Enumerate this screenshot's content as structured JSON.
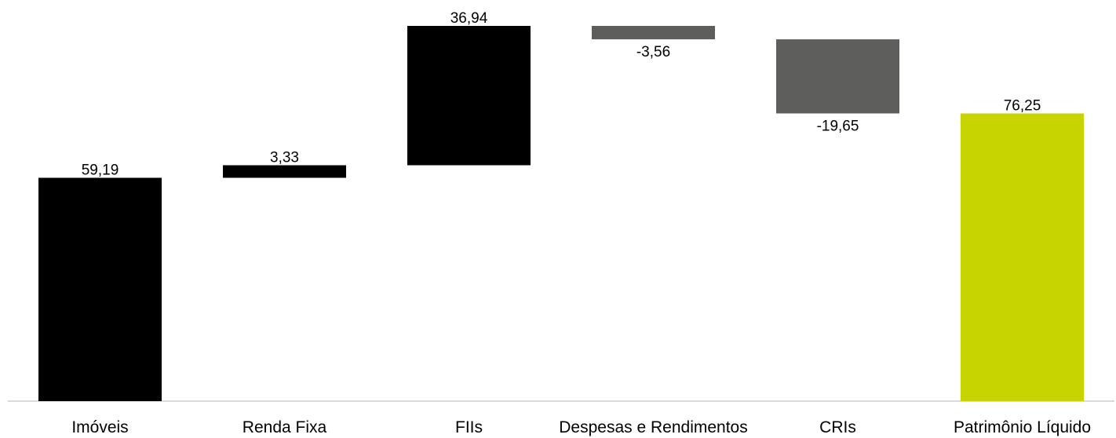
{
  "chart_data": {
    "type": "waterfall",
    "categories": [
      "Imóveis",
      "Renda Fixa",
      "FIIs",
      "Despesas e Rendimentos",
      "CRIs",
      "Patrimônio Líquido"
    ],
    "values": [
      59.19,
      3.33,
      36.94,
      -3.56,
      -19.65,
      76.25
    ],
    "value_labels": [
      "59,19",
      "3,33",
      "36,94",
      "-3,56",
      "-19,65",
      "76,25"
    ],
    "bar_kinds": [
      "increase",
      "increase",
      "increase",
      "decrease",
      "decrease",
      "total"
    ],
    "colors": {
      "increase": "#000000",
      "decrease": "#5e5e5c",
      "total": "#c8d400",
      "axis": "#d9d9d9"
    },
    "title": "",
    "xlabel": "",
    "ylabel": "",
    "grid": false,
    "legend": "none"
  }
}
